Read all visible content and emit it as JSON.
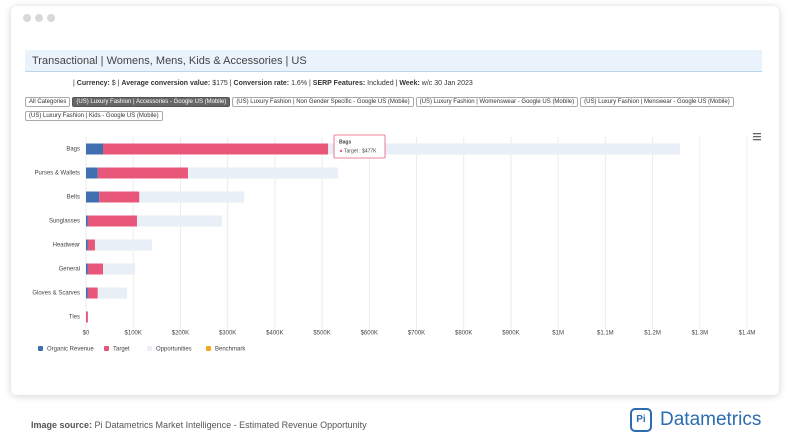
{
  "header": {
    "title": "Transactional | Womens, Mens, Kids & Accessories | US"
  },
  "info": [
    {
      "label": "Currency:",
      "value": "$"
    },
    {
      "label": "Average conversion value:",
      "value": "$175"
    },
    {
      "label": "Conversion rate:",
      "value": "1.6%"
    },
    {
      "label": "SERP Features:",
      "value": "Included"
    },
    {
      "label": "Week:",
      "value": "w/c 30 Jan 2023"
    }
  ],
  "filters": [
    "All Categories",
    "(US) Luxury Fashion | Accessories - Google US (Mobile)",
    "(US) Luxury Fashion | Non Gender Specific - Google US (Mobile)",
    "(US) Luxury Fashion | Womenswear - Google US (Mobile)",
    "(US) Luxury Fashion | Menswear - Google US (Mobile)",
    "(US) Luxury Fashion | Kids - Google US (Mobile)"
  ],
  "chart_data": {
    "type": "stacked-barh",
    "categories": [
      "Bags",
      "Purses & Wallets",
      "Belts",
      "Sunglasses",
      "Headwear",
      "General",
      "Gloves & Scarves",
      "Ties"
    ],
    "series": [
      {
        "name": "Organic Revenue",
        "color": "#3f6fb0",
        "values": [
          36000,
          25000,
          28000,
          4000,
          4000,
          4000,
          4000,
          0
        ]
      },
      {
        "name": "Target",
        "color": "#e8577a",
        "values": [
          477000,
          191000,
          85000,
          104000,
          15000,
          32000,
          21000,
          4000
        ]
      },
      {
        "name": "Opportunities",
        "color": "#e9eff6",
        "values": [
          745000,
          318000,
          222000,
          180000,
          121000,
          68000,
          62000,
          0
        ]
      },
      {
        "name": "Benchmark",
        "color": "#f5a623",
        "values": [
          null,
          null,
          null,
          null,
          null,
          null,
          null,
          null
        ]
      }
    ],
    "xlim": [
      0,
      1400000
    ],
    "xticks": [
      {
        "value": 0,
        "label": "$0"
      },
      {
        "value": 100000,
        "label": "$100K"
      },
      {
        "value": 200000,
        "label": "$200K"
      },
      {
        "value": 300000,
        "label": "$300K"
      },
      {
        "value": 400000,
        "label": "$400K"
      },
      {
        "value": 500000,
        "label": "$500K"
      },
      {
        "value": 600000,
        "label": "$600K"
      },
      {
        "value": 700000,
        "label": "$700K"
      },
      {
        "value": 800000,
        "label": "$800K"
      },
      {
        "value": 900000,
        "label": "$900K"
      },
      {
        "value": 1000000,
        "label": "$1M"
      },
      {
        "value": 1100000,
        "label": "$1.1M"
      },
      {
        "value": 1200000,
        "label": "$1.2M"
      },
      {
        "value": 1300000,
        "label": "$1.3M"
      },
      {
        "value": 1400000,
        "label": "$1.4M"
      }
    ],
    "grid": true,
    "tooltip": {
      "title": "Bags",
      "text": "Target : $477K"
    }
  },
  "footer": {
    "source_label": "Image source:",
    "source": "Pi Datametrics Market Intelligence - Estimated Revenue Opportunity",
    "logo_mark": "Pi",
    "logo": "Datametrics"
  }
}
